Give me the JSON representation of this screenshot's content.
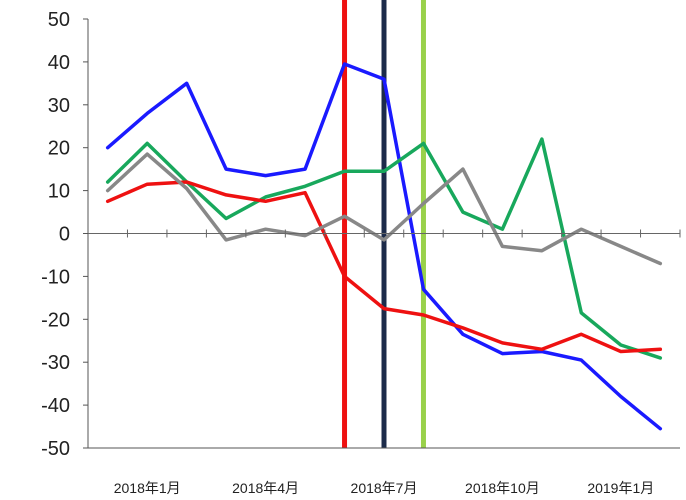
{
  "chart_data": {
    "type": "line",
    "title": "",
    "xlabel": "",
    "ylabel": "",
    "ylim": [
      -50,
      50
    ],
    "yticks": [
      50,
      40,
      30,
      20,
      10,
      0,
      -10,
      -20,
      -30,
      -40,
      -50
    ],
    "x_tick_labels": [
      {
        "label": "2018年1月",
        "index": 1
      },
      {
        "label": "2018年4月",
        "index": 4
      },
      {
        "label": "2018年7月",
        "index": 7
      },
      {
        "label": "2018年10月",
        "index": 10
      },
      {
        "label": "2019年1月",
        "index": 13
      }
    ],
    "x_count": 15,
    "grid": false,
    "series": [
      {
        "color": "#1a1aff",
        "values": [
          20,
          28,
          35,
          15,
          13.5,
          15,
          39.5,
          36,
          -13,
          -23.5,
          -28,
          -27.5,
          -29.5,
          -38,
          -45.5
        ]
      },
      {
        "color": "#18a85c",
        "values": [
          12,
          21,
          12,
          3.5,
          8.5,
          11,
          14.5,
          14.5,
          21,
          5,
          1,
          22,
          -18.5,
          -26,
          -29
        ]
      },
      {
        "color": "#ee1111",
        "values": [
          7.5,
          11.5,
          12,
          9,
          7.5,
          9.5,
          -10,
          -17.5,
          -19,
          -22,
          -25.5,
          -27,
          -23.5,
          -27.5,
          -27
        ]
      },
      {
        "color": "#888888",
        "values": [
          10,
          18.5,
          10.5,
          -1.5,
          1,
          -0.5,
          4,
          -1.5,
          7,
          15,
          -3,
          -4,
          1,
          -3,
          -7
        ]
      }
    ],
    "vertical_markers": [
      {
        "index": 6,
        "color": "#ee1111"
      },
      {
        "index": 7,
        "color": "#1c2b4a"
      },
      {
        "index": 8,
        "color": "#99d14a"
      }
    ]
  }
}
